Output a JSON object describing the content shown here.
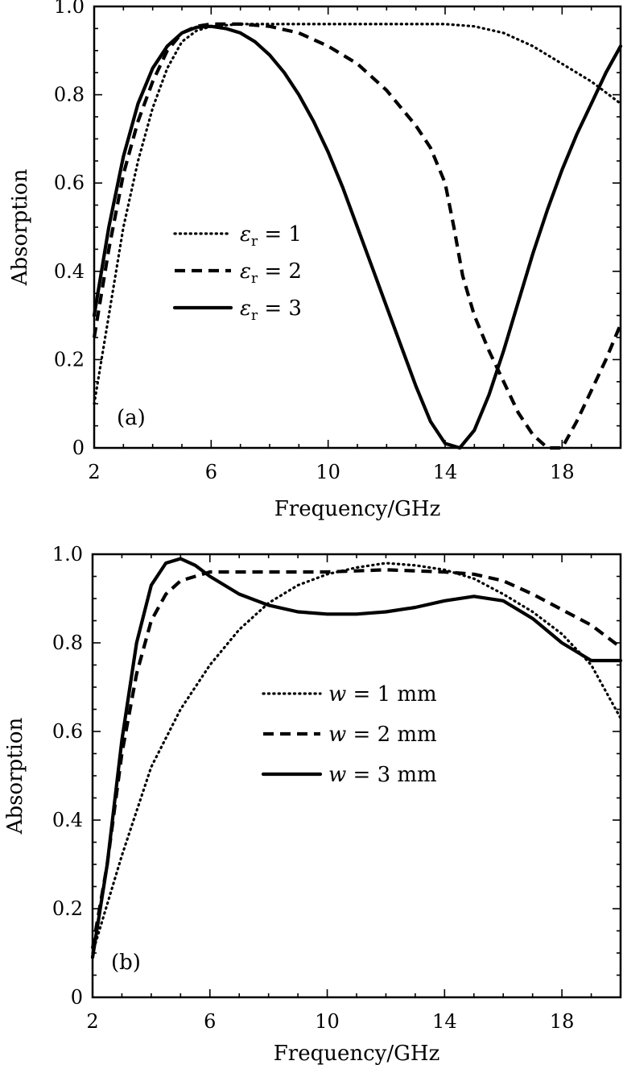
{
  "chart_data": [
    {
      "type": "line",
      "panel_label": "(a)",
      "title": "",
      "xlabel": "Frequency/GHz",
      "ylabel": "Absorption",
      "xlim": [
        2,
        20
      ],
      "ylim": [
        0,
        1.0
      ],
      "xticks": [
        2,
        6,
        10,
        14,
        18
      ],
      "xtick_labels": [
        "2",
        "6",
        "10",
        "14",
        "18"
      ],
      "yticks": [
        0,
        0.2,
        0.4,
        0.6,
        0.8,
        1.0
      ],
      "ytick_labels": [
        "0",
        "0.2",
        "0.4",
        "0.6",
        "0.8",
        "1.0"
      ],
      "grid": false,
      "legend_position": "middle-left",
      "series": [
        {
          "name": "εr = 1",
          "legend": {
            "symbol": "ε",
            "sub": "r",
            "rest": " = 1"
          },
          "style": "dotted",
          "points": [
            [
              2.0,
              0.1
            ],
            [
              2.5,
              0.3
            ],
            [
              3,
              0.5
            ],
            [
              3.5,
              0.65
            ],
            [
              4,
              0.77
            ],
            [
              4.5,
              0.86
            ],
            [
              5,
              0.92
            ],
            [
              5.5,
              0.945
            ],
            [
              6,
              0.955
            ],
            [
              7,
              0.96
            ],
            [
              8,
              0.96
            ],
            [
              10,
              0.96
            ],
            [
              12,
              0.96
            ],
            [
              14,
              0.96
            ],
            [
              15,
              0.955
            ],
            [
              16,
              0.94
            ],
            [
              17,
              0.91
            ],
            [
              18,
              0.87
            ],
            [
              19,
              0.83
            ],
            [
              20,
              0.78
            ]
          ]
        },
        {
          "name": "εr = 2",
          "legend": {
            "symbol": "ε",
            "sub": "r",
            "rest": " = 2"
          },
          "style": "dashed",
          "points": [
            [
              2.0,
              0.25
            ],
            [
              2.5,
              0.45
            ],
            [
              3,
              0.62
            ],
            [
              3.5,
              0.74
            ],
            [
              4,
              0.83
            ],
            [
              4.5,
              0.9
            ],
            [
              5,
              0.94
            ],
            [
              5.5,
              0.955
            ],
            [
              6,
              0.96
            ],
            [
              7,
              0.96
            ],
            [
              8,
              0.955
            ],
            [
              9,
              0.94
            ],
            [
              10,
              0.91
            ],
            [
              11,
              0.87
            ],
            [
              12,
              0.81
            ],
            [
              13,
              0.73
            ],
            [
              13.5,
              0.68
            ],
            [
              14,
              0.6
            ],
            [
              14.3,
              0.5
            ],
            [
              14.6,
              0.39
            ],
            [
              15,
              0.3
            ],
            [
              15.5,
              0.22
            ],
            [
              16,
              0.15
            ],
            [
              16.5,
              0.08
            ],
            [
              17,
              0.03
            ],
            [
              17.5,
              0.0
            ],
            [
              18,
              0.0
            ],
            [
              18.5,
              0.06
            ],
            [
              19,
              0.13
            ],
            [
              19.5,
              0.2
            ],
            [
              20,
              0.28
            ]
          ]
        },
        {
          "name": "εr = 3",
          "legend": {
            "symbol": "ε",
            "sub": "r",
            "rest": " = 3"
          },
          "style": "solid",
          "points": [
            [
              2.0,
              0.3
            ],
            [
              2.5,
              0.5
            ],
            [
              3,
              0.66
            ],
            [
              3.5,
              0.78
            ],
            [
              4,
              0.86
            ],
            [
              4.5,
              0.91
            ],
            [
              5,
              0.94
            ],
            [
              5.5,
              0.953
            ],
            [
              6,
              0.955
            ],
            [
              6.5,
              0.95
            ],
            [
              7,
              0.94
            ],
            [
              7.5,
              0.92
            ],
            [
              8,
              0.89
            ],
            [
              8.5,
              0.85
            ],
            [
              9,
              0.8
            ],
            [
              9.5,
              0.74
            ],
            [
              10,
              0.67
            ],
            [
              10.5,
              0.59
            ],
            [
              11,
              0.5
            ],
            [
              11.5,
              0.41
            ],
            [
              12,
              0.32
            ],
            [
              12.5,
              0.23
            ],
            [
              13,
              0.14
            ],
            [
              13.5,
              0.06
            ],
            [
              14,
              0.01
            ],
            [
              14.5,
              0.0
            ],
            [
              15,
              0.04
            ],
            [
              15.5,
              0.12
            ],
            [
              16,
              0.22
            ],
            [
              16.5,
              0.33
            ],
            [
              17,
              0.44
            ],
            [
              17.5,
              0.54
            ],
            [
              18,
              0.63
            ],
            [
              18.5,
              0.71
            ],
            [
              19,
              0.78
            ],
            [
              19.5,
              0.85
            ],
            [
              20,
              0.91
            ]
          ]
        }
      ]
    },
    {
      "type": "line",
      "panel_label": "(b)",
      "title": "",
      "xlabel": "Frequency/GHz",
      "ylabel": "Absorption",
      "xlim": [
        2,
        20
      ],
      "ylim": [
        0,
        1.0
      ],
      "xticks": [
        2,
        6,
        10,
        14,
        18
      ],
      "xtick_labels": [
        "2",
        "6",
        "10",
        "14",
        "18"
      ],
      "yticks": [
        0,
        0.2,
        0.4,
        0.6,
        0.8,
        1.0
      ],
      "ytick_labels": [
        "0",
        "0.2",
        "0.4",
        "0.6",
        "0.8",
        "1.0"
      ],
      "grid": false,
      "legend_position": "center-right",
      "series": [
        {
          "name": "w = 1 mm",
          "legend": {
            "symbol": "w",
            "sub": "",
            "rest": " = 1  mm"
          },
          "style": "dotted",
          "points": [
            [
              2.0,
              0.1
            ],
            [
              3,
              0.32
            ],
            [
              4,
              0.52
            ],
            [
              5,
              0.65
            ],
            [
              6,
              0.75
            ],
            [
              7,
              0.83
            ],
            [
              8,
              0.89
            ],
            [
              9,
              0.93
            ],
            [
              10,
              0.955
            ],
            [
              11,
              0.97
            ],
            [
              12,
              0.98
            ],
            [
              13,
              0.975
            ],
            [
              14,
              0.965
            ],
            [
              15,
              0.945
            ],
            [
              16,
              0.91
            ],
            [
              17,
              0.87
            ],
            [
              18,
              0.82
            ],
            [
              19,
              0.75
            ],
            [
              20,
              0.63
            ]
          ]
        },
        {
          "name": "w = 2 mm",
          "legend": {
            "symbol": "w",
            "sub": "",
            "rest": " = 2  mm"
          },
          "style": "dashed",
          "points": [
            [
              2.0,
              0.11
            ],
            [
              2.5,
              0.3
            ],
            [
              3,
              0.55
            ],
            [
              3.5,
              0.73
            ],
            [
              4,
              0.85
            ],
            [
              4.5,
              0.91
            ],
            [
              5,
              0.94
            ],
            [
              6,
              0.96
            ],
            [
              8,
              0.96
            ],
            [
              10,
              0.96
            ],
            [
              12,
              0.965
            ],
            [
              14,
              0.96
            ],
            [
              15,
              0.955
            ],
            [
              16,
              0.94
            ],
            [
              17,
              0.91
            ],
            [
              18,
              0.875
            ],
            [
              19,
              0.84
            ],
            [
              20,
              0.79
            ]
          ]
        },
        {
          "name": "w = 3 mm",
          "legend": {
            "symbol": "w",
            "sub": "",
            "rest": " = 3  mm"
          },
          "style": "solid",
          "points": [
            [
              2.0,
              0.09
            ],
            [
              2.5,
              0.3
            ],
            [
              3,
              0.58
            ],
            [
              3.5,
              0.8
            ],
            [
              4,
              0.93
            ],
            [
              4.5,
              0.98
            ],
            [
              5,
              0.99
            ],
            [
              5.5,
              0.975
            ],
            [
              6,
              0.95
            ],
            [
              7,
              0.91
            ],
            [
              8,
              0.885
            ],
            [
              9,
              0.87
            ],
            [
              10,
              0.865
            ],
            [
              11,
              0.865
            ],
            [
              12,
              0.87
            ],
            [
              13,
              0.88
            ],
            [
              14,
              0.895
            ],
            [
              15,
              0.905
            ],
            [
              16,
              0.895
            ],
            [
              17,
              0.855
            ],
            [
              18,
              0.8
            ],
            [
              19,
              0.76
            ],
            [
              20,
              0.76
            ]
          ]
        }
      ]
    }
  ]
}
